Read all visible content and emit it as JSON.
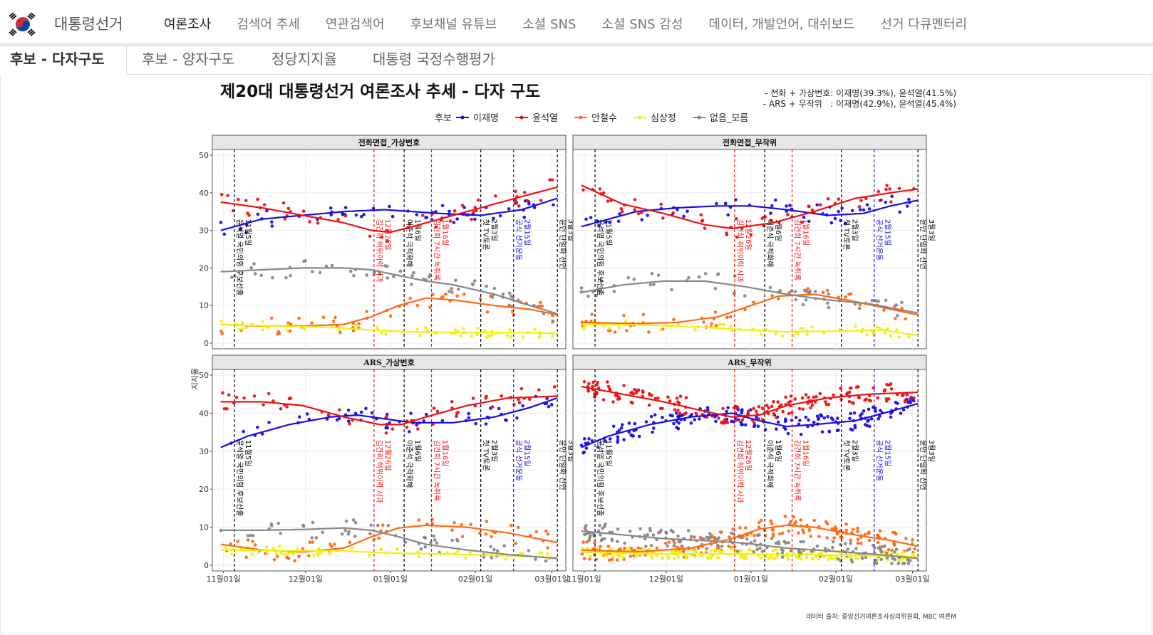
{
  "nav": {
    "brand": "대통령선거",
    "items": [
      {
        "label": "여론조사",
        "active": true
      },
      {
        "label": "검색어 추세",
        "active": false
      },
      {
        "label": "연관검색어",
        "active": false
      },
      {
        "label": "후보채널 유튜브",
        "active": false
      },
      {
        "label": "소셜 SNS",
        "active": false
      },
      {
        "label": "소셜 SNS 감성",
        "active": false
      },
      {
        "label": "데이터, 개발언어, 대쉬보드",
        "active": false
      },
      {
        "label": "선거 다큐멘터리",
        "active": false
      }
    ]
  },
  "subtabs": [
    "후보 - 다자구도",
    "후보 - 양자구도",
    "정당지지율",
    "대통령 국정수행평가"
  ],
  "chart_data": {
    "type": "line",
    "title": "제20대 대통령선거 여론조사 추세 - 다자 구도",
    "subtitle_lines": [
      "- 전화 + 가상번호: 이재명(39.3%), 윤석열(41.5%)",
      "- ARS + 무작위   : 이재명(42.9%), 윤석열(45.4%)"
    ],
    "legend_title": "후보",
    "ylabel": "지지율",
    "caption": "데이터 출처: 중앙선거여론조사심의위원회, MBC 여론M",
    "ylim": [
      0,
      50
    ],
    "yticks": [
      0,
      10,
      20,
      30,
      40,
      50
    ],
    "xrange": [
      "2021-10-30",
      "2022-03-04"
    ],
    "xticks": [
      {
        "date": "2021-11-01",
        "label": "11월01일"
      },
      {
        "date": "2021-12-01",
        "label": "12월01일"
      },
      {
        "date": "2022-01-01",
        "label": "01월01일"
      },
      {
        "date": "2022-02-01",
        "label": "02월01일"
      },
      {
        "date": "2022-03-01",
        "label": "03월01일"
      }
    ],
    "series": [
      {
        "name": "이재명",
        "color": "#1a0ee0"
      },
      {
        "name": "윤석열",
        "color": "#ee1111"
      },
      {
        "name": "안철수",
        "color": "#ff6a14"
      },
      {
        "name": "심상정",
        "color": "#f2ef14"
      },
      {
        "name": "없음_모름",
        "color": "#888888"
      }
    ],
    "events": [
      {
        "date": "2021-11-05",
        "color": "#000000",
        "label": "윤석열 국민의힘 후보선출",
        "date_label": "11월5일"
      },
      {
        "date": "2021-12-26",
        "color": "#ee1111",
        "label": "김건희 허위이력 사과",
        "date_label": "12월26일"
      },
      {
        "date": "2022-01-06",
        "color": "#000000",
        "label": "이준석 극적화해",
        "date_label": "1월6일"
      },
      {
        "date": "2022-01-16",
        "color": "#ee1111",
        "label": "김건희 7시간 녹취록",
        "date_label": "1월16일"
      },
      {
        "date": "2022-02-03",
        "color": "#000000",
        "label": "첫 TV토론",
        "date_label": "2월3일"
      },
      {
        "date": "2022-02-15",
        "color": "#1a0ee0",
        "label": "공식 선거운동",
        "date_label": "2월15일"
      },
      {
        "date": "2022-03-03",
        "color": "#000000",
        "label": "윤안 단일화 선언",
        "date_label": "3월3일"
      }
    ],
    "panels": [
      {
        "title": "전화면접_가상번호",
        "trends": {
          "이재명": [
            [
              0,
              30
            ],
            [
              15,
              33
            ],
            [
              30,
              34
            ],
            [
              45,
              35
            ],
            [
              60,
              35.5
            ],
            [
              70,
              35
            ],
            [
              80,
              34.5
            ],
            [
              95,
              34
            ],
            [
              110,
              35.5
            ],
            [
              125,
              39
            ],
            [
              123,
              39
            ]
          ],
          "윤석열": [
            [
              0,
              37.5
            ],
            [
              15,
              36
            ],
            [
              30,
              34
            ],
            [
              45,
              32
            ],
            [
              55,
              30
            ],
            [
              62,
              29.5
            ],
            [
              70,
              31
            ],
            [
              80,
              33
            ],
            [
              95,
              36
            ],
            [
              110,
              39
            ],
            [
              123,
              41.5
            ]
          ],
          "안철수": [
            [
              0,
              5
            ],
            [
              15,
              4.5
            ],
            [
              30,
              4.5
            ],
            [
              45,
              5
            ],
            [
              55,
              7
            ],
            [
              65,
              10
            ],
            [
              75,
              12
            ],
            [
              85,
              11.5
            ],
            [
              100,
              10
            ],
            [
              113,
              9
            ],
            [
              123,
              7.5
            ]
          ],
          "심상정": [
            [
              0,
              5
            ],
            [
              20,
              4.5
            ],
            [
              40,
              4.2
            ],
            [
              55,
              3.5
            ],
            [
              70,
              3
            ],
            [
              90,
              2.8
            ],
            [
              110,
              2.8
            ],
            [
              123,
              2.6
            ]
          ],
          "없음_모름": [
            [
              0,
              19
            ],
            [
              15,
              19.5
            ],
            [
              30,
              20
            ],
            [
              45,
              20
            ],
            [
              55,
              19.5
            ],
            [
              65,
              18
            ],
            [
              75,
              16.5
            ],
            [
              85,
              15.5
            ],
            [
              100,
              13
            ],
            [
              113,
              10
            ],
            [
              123,
              7.8
            ]
          ]
        }
      },
      {
        "title": "전화면접_무작위",
        "trends": {
          "이재명": [
            [
              0,
              31
            ],
            [
              20,
              35
            ],
            [
              35,
              36
            ],
            [
              50,
              36.5
            ],
            [
              62,
              36.5
            ],
            [
              75,
              35.5
            ],
            [
              90,
              34
            ],
            [
              103,
              34.5
            ],
            [
              113,
              36.5
            ],
            [
              123,
              38
            ]
          ],
          "윤석열": [
            [
              0,
              42
            ],
            [
              15,
              37
            ],
            [
              30,
              34.5
            ],
            [
              45,
              31.5
            ],
            [
              55,
              30.5
            ],
            [
              70,
              32
            ],
            [
              85,
              35
            ],
            [
              100,
              38.5
            ],
            [
              113,
              40
            ],
            [
              123,
              41
            ]
          ],
          "안철수": [
            [
              0,
              5.5
            ],
            [
              20,
              5.2
            ],
            [
              35,
              5.5
            ],
            [
              50,
              7
            ],
            [
              62,
              10
            ],
            [
              72,
              12.5
            ],
            [
              85,
              13
            ],
            [
              97,
              11.5
            ],
            [
              110,
              9.5
            ],
            [
              123,
              7.5
            ]
          ],
          "심상정": [
            [
              0,
              5
            ],
            [
              25,
              4.8
            ],
            [
              45,
              4.2
            ],
            [
              60,
              3.5
            ],
            [
              75,
              3
            ],
            [
              95,
              3.2
            ],
            [
              110,
              3.5
            ],
            [
              123,
              2
            ]
          ],
          "없음_모름": [
            [
              0,
              13.5
            ],
            [
              15,
              15.5
            ],
            [
              30,
              16.5
            ],
            [
              45,
              16.5
            ],
            [
              60,
              15
            ],
            [
              75,
              13
            ],
            [
              90,
              11.5
            ],
            [
              105,
              10.5
            ],
            [
              123,
              8
            ]
          ]
        }
      },
      {
        "title": "ARS_가상번호",
        "trends": {
          "이재명": [
            [
              0,
              31
            ],
            [
              10,
              34
            ],
            [
              25,
              37
            ],
            [
              40,
              39
            ],
            [
              50,
              39.5
            ],
            [
              60,
              38.5
            ],
            [
              70,
              37.5
            ],
            [
              85,
              37.5
            ],
            [
              100,
              39
            ],
            [
              113,
              41.5
            ],
            [
              123,
              44
            ]
          ],
          "윤석열": [
            [
              0,
              43
            ],
            [
              15,
              43
            ],
            [
              30,
              42
            ],
            [
              45,
              39
            ],
            [
              58,
              37
            ],
            [
              66,
              37
            ],
            [
              75,
              39
            ],
            [
              90,
              42
            ],
            [
              105,
              44
            ],
            [
              123,
              44.5
            ]
          ],
          "안철수": [
            [
              0,
              5.5
            ],
            [
              15,
              4
            ],
            [
              30,
              3.5
            ],
            [
              45,
              4.5
            ],
            [
              55,
              7.5
            ],
            [
              65,
              9.8
            ],
            [
              75,
              10.5
            ],
            [
              90,
              10
            ],
            [
              105,
              8.5
            ],
            [
              123,
              6
            ]
          ],
          "심상정": [
            [
              0,
              4
            ],
            [
              25,
              3.8
            ],
            [
              45,
              3.8
            ],
            [
              60,
              3.2
            ],
            [
              80,
              3
            ],
            [
              100,
              2.6
            ],
            [
              123,
              2
            ]
          ],
          "없음_모름": [
            [
              0,
              9.2
            ],
            [
              15,
              9.2
            ],
            [
              30,
              9.4
            ],
            [
              45,
              9.8
            ],
            [
              55,
              9.2
            ],
            [
              65,
              7.5
            ],
            [
              75,
              5.5
            ],
            [
              90,
              4
            ],
            [
              105,
              2.8
            ],
            [
              123,
              1.8
            ]
          ]
        }
      },
      {
        "title": "ARS_무작위",
        "trends": {
          "이재명": [
            [
              0,
              31
            ],
            [
              10,
              34
            ],
            [
              25,
              37
            ],
            [
              40,
              39
            ],
            [
              55,
              40
            ],
            [
              65,
              38
            ],
            [
              75,
              36.5
            ],
            [
              85,
              37
            ],
            [
              100,
              38
            ],
            [
              113,
              40.5
            ],
            [
              123,
              42.5
            ]
          ],
          "윤석열": [
            [
              0,
              47
            ],
            [
              15,
              45
            ],
            [
              30,
              43
            ],
            [
              45,
              40.5
            ],
            [
              55,
              39
            ],
            [
              65,
              39.5
            ],
            [
              75,
              42
            ],
            [
              90,
              44
            ],
            [
              105,
              45
            ],
            [
              123,
              45.5
            ]
          ],
          "안철수": [
            [
              0,
              4
            ],
            [
              20,
              3.5
            ],
            [
              40,
              4.5
            ],
            [
              55,
              7
            ],
            [
              65,
              9.5
            ],
            [
              75,
              10.5
            ],
            [
              85,
              10
            ],
            [
              100,
              8
            ],
            [
              113,
              6.5
            ],
            [
              123,
              5
            ]
          ],
          "심상정": [
            [
              0,
              3.5
            ],
            [
              30,
              3
            ],
            [
              55,
              3
            ],
            [
              75,
              2.8
            ],
            [
              100,
              2.6
            ],
            [
              123,
              2.2
            ]
          ],
          "없음_모름": [
            [
              0,
              9
            ],
            [
              15,
              8
            ],
            [
              30,
              7
            ],
            [
              45,
              6.5
            ],
            [
              60,
              5.8
            ],
            [
              75,
              4.5
            ],
            [
              90,
              3.8
            ],
            [
              105,
              3
            ],
            [
              123,
              1.8
            ]
          ]
        }
      }
    ]
  }
}
